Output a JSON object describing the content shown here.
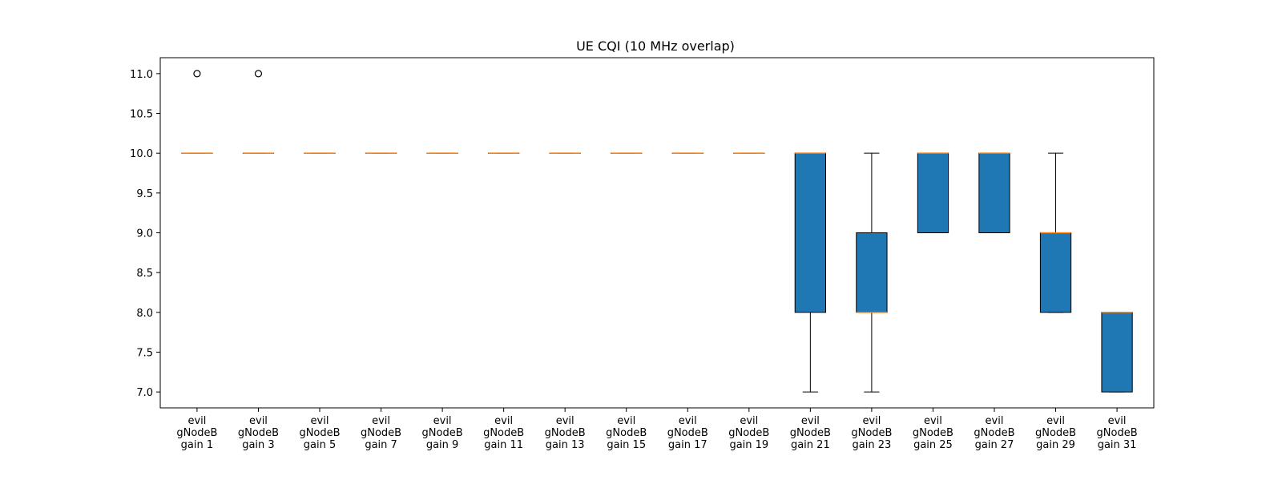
{
  "chart_data": {
    "type": "boxplot",
    "title": "UE CQI (10 MHz overlap)",
    "xlabel": "",
    "ylabel": "",
    "ylim": [
      6.8,
      11.2
    ],
    "yticks": [
      7.0,
      7.5,
      8.0,
      8.5,
      9.0,
      9.5,
      10.0,
      10.5,
      11.0
    ],
    "ytick_labels": [
      "7.0",
      "7.5",
      "8.0",
      "8.5",
      "9.0",
      "9.5",
      "10.0",
      "10.5",
      "11.0"
    ],
    "grid": false,
    "legend": "none",
    "colors": {
      "box_fill": "#1f77b4",
      "median": "#ff7f0e",
      "outline": "#000000"
    },
    "categories": [
      [
        "evil",
        "gNodeB",
        "gain 1"
      ],
      [
        "evil",
        "gNodeB",
        "gain 3"
      ],
      [
        "evil",
        "gNodeB",
        "gain 5"
      ],
      [
        "evil",
        "gNodeB",
        "gain 7"
      ],
      [
        "evil",
        "gNodeB",
        "gain 9"
      ],
      [
        "evil",
        "gNodeB",
        "gain 11"
      ],
      [
        "evil",
        "gNodeB",
        "gain 13"
      ],
      [
        "evil",
        "gNodeB",
        "gain 15"
      ],
      [
        "evil",
        "gNodeB",
        "gain 17"
      ],
      [
        "evil",
        "gNodeB",
        "gain 19"
      ],
      [
        "evil",
        "gNodeB",
        "gain 21"
      ],
      [
        "evil",
        "gNodeB",
        "gain 23"
      ],
      [
        "evil",
        "gNodeB",
        "gain 25"
      ],
      [
        "evil",
        "gNodeB",
        "gain 27"
      ],
      [
        "evil",
        "gNodeB",
        "gain 29"
      ],
      [
        "evil",
        "gNodeB",
        "gain 31"
      ]
    ],
    "boxes": [
      {
        "whislo": 10,
        "q1": 10,
        "med": 10,
        "q3": 10,
        "whishi": 10,
        "fliers": [
          11
        ]
      },
      {
        "whislo": 10,
        "q1": 10,
        "med": 10,
        "q3": 10,
        "whishi": 10,
        "fliers": [
          11
        ]
      },
      {
        "whislo": 10,
        "q1": 10,
        "med": 10,
        "q3": 10,
        "whishi": 10,
        "fliers": []
      },
      {
        "whislo": 10,
        "q1": 10,
        "med": 10,
        "q3": 10,
        "whishi": 10,
        "fliers": []
      },
      {
        "whislo": 10,
        "q1": 10,
        "med": 10,
        "q3": 10,
        "whishi": 10,
        "fliers": []
      },
      {
        "whislo": 10,
        "q1": 10,
        "med": 10,
        "q3": 10,
        "whishi": 10,
        "fliers": []
      },
      {
        "whislo": 10,
        "q1": 10,
        "med": 10,
        "q3": 10,
        "whishi": 10,
        "fliers": []
      },
      {
        "whislo": 10,
        "q1": 10,
        "med": 10,
        "q3": 10,
        "whishi": 10,
        "fliers": []
      },
      {
        "whislo": 10,
        "q1": 10,
        "med": 10,
        "q3": 10,
        "whishi": 10,
        "fliers": []
      },
      {
        "whislo": 10,
        "q1": 10,
        "med": 10,
        "q3": 10,
        "whishi": 10,
        "fliers": []
      },
      {
        "whislo": 7,
        "q1": 8,
        "med": 10,
        "q3": 10,
        "whishi": 10,
        "fliers": []
      },
      {
        "whislo": 7,
        "q1": 8,
        "med": 8,
        "q3": 9,
        "whishi": 10,
        "fliers": []
      },
      {
        "whislo": 9,
        "q1": 9,
        "med": 10,
        "q3": 10,
        "whishi": 10,
        "fliers": []
      },
      {
        "whislo": 9,
        "q1": 9,
        "med": 10,
        "q3": 10,
        "whishi": 10,
        "fliers": []
      },
      {
        "whislo": 8,
        "q1": 8,
        "med": 9,
        "q3": 9,
        "whishi": 10,
        "fliers": []
      },
      {
        "whislo": 7,
        "q1": 7,
        "med": 8,
        "q3": 8,
        "whishi": 8,
        "fliers": []
      }
    ]
  }
}
